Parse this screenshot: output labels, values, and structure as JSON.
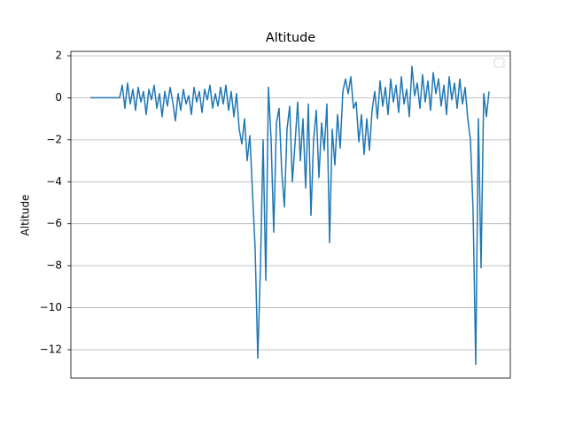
{
  "chart_data": {
    "type": "line",
    "title": "Altitude",
    "y_label": "Altitude",
    "values": [
      0,
      0,
      0,
      0,
      0,
      0,
      0,
      0,
      0,
      0,
      0,
      0,
      0.6,
      -0.5,
      0.7,
      -0.3,
      0.4,
      -0.6,
      0.5,
      -0.2,
      0.3,
      -0.8,
      0.4,
      -0.1,
      0.6,
      -0.5,
      0.2,
      -0.9,
      0.3,
      -0.4,
      0.5,
      -0.2,
      -1.1,
      0.2,
      -0.6,
      0.4,
      -0.3,
      0.1,
      -0.8,
      0.5,
      -0.2,
      0.3,
      -0.7,
      0.4,
      -0.1,
      0.6,
      -0.5,
      0.2,
      -0.4,
      0.5,
      -0.3,
      0.6,
      -0.6,
      0.3,
      -0.9,
      0.2,
      -1.5,
      -2.2,
      -1.0,
      -3.0,
      -1.8,
      -4.5,
      -7.2,
      -12.4,
      -8.0,
      -2.0,
      -8.7,
      0.5,
      -2.0,
      -6.4,
      -1.2,
      -0.5,
      -3.5,
      -5.2,
      -1.5,
      -0.4,
      -4.0,
      -2.2,
      -0.2,
      -3.0,
      -1.0,
      -4.3,
      -0.3,
      -5.6,
      -2.0,
      -0.6,
      -3.8,
      -1.2,
      -2.5,
      -0.3,
      -6.9,
      -1.5,
      -3.2,
      -0.8,
      -2.4,
      0.3,
      0.9,
      0.2,
      1.0,
      -0.5,
      -0.2,
      -2.1,
      -0.8,
      -2.7,
      -1.0,
      -2.5,
      -0.6,
      0.3,
      -1.0,
      0.8,
      -0.4,
      0.5,
      -0.8,
      0.9,
      -0.2,
      0.6,
      -0.7,
      1.0,
      -0.3,
      0.4,
      -0.9,
      1.5,
      0.1,
      0.7,
      -0.5,
      1.1,
      -0.2,
      0.8,
      -0.6,
      1.2,
      0.2,
      0.9,
      -0.4,
      0.6,
      -0.8,
      1.0,
      -0.1,
      0.7,
      -0.5,
      0.9,
      -0.3,
      0.5,
      -1.0,
      -2.0,
      -5.4,
      -12.7,
      -1.0,
      -8.1,
      0.2,
      -0.9,
      0.3
    ],
    "color": "#1f77b4",
    "ylim": [
      -13.35,
      2.21
    ],
    "yticks": [
      {
        "value": -12,
        "label": "−12"
      },
      {
        "value": -10,
        "label": "−10"
      },
      {
        "value": -8,
        "label": "−8"
      },
      {
        "value": -6,
        "label": "−6"
      },
      {
        "value": -4,
        "label": "−4"
      },
      {
        "value": -2,
        "label": "−2"
      },
      0,
      2
    ],
    "grid": true
  }
}
